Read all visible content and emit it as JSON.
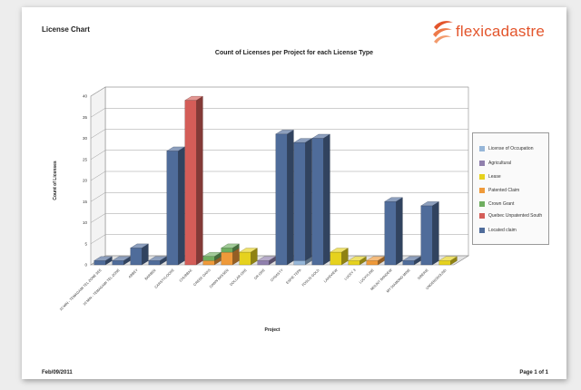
{
  "page": {
    "report_title": "License Chart",
    "logo_text": "flexicadastre",
    "date": "Feb/09/2011",
    "page_label": "Page 1 of 1"
  },
  "chart_data": {
    "type": "bar",
    "title": "Count of Licenses per Project for each License Type",
    "xlabel": "Project",
    "ylabel": "Count of Licenses",
    "ylim": [
      0,
      40
    ],
    "yticks": [
      0,
      5,
      10,
      15,
      20,
      25,
      30,
      35,
      40
    ],
    "grid": true,
    "legend_position": "right",
    "stacked": true,
    "categories": [
      "10 MIN - TEMAGAMI TEL ZONE 3EE",
      "10 MIN - TEMAGAMI TEL ZONE",
      "ABBEY",
      "BARBER",
      "CARSTYLOCRE",
      "CHUBBAK",
      "CREEK OAKS",
      "DAWN BASSEN",
      "DOLLAR ORE",
      "DR ORE",
      "DYNASTY",
      "ESPIE TEPA",
      "FOSLIS GOLD",
      "LAKEVIEW",
      "LUCKY 3",
      "LUCKYLINE",
      "MOUNT BANDEW",
      "MY DIAMOND MINE",
      "SIBERIE",
      "UNDERGROUND"
    ],
    "series": [
      {
        "name": "License of Occupation",
        "color": "#96b6d8",
        "values": [
          0,
          0,
          0,
          0,
          0,
          0,
          0,
          0,
          0,
          0,
          0,
          1,
          0,
          0,
          0,
          0,
          0,
          0,
          0,
          0
        ]
      },
      {
        "name": "Agricultural",
        "color": "#9080ad",
        "values": [
          0,
          0,
          0,
          0,
          0,
          0,
          0,
          0,
          0,
          1,
          0,
          0,
          0,
          0,
          0,
          0,
          0,
          0,
          0,
          0
        ]
      },
      {
        "name": "Lease",
        "color": "#e6d21e",
        "values": [
          0,
          0,
          0,
          0,
          0,
          0,
          0,
          0,
          3,
          0,
          0,
          0,
          0,
          3,
          1,
          0,
          0,
          0,
          0,
          1
        ]
      },
      {
        "name": "Patented Claim",
        "color": "#ef9a3a",
        "values": [
          0,
          0,
          0,
          0,
          0,
          0,
          1,
          3,
          0,
          0,
          0,
          0,
          0,
          0,
          0,
          1,
          0,
          0,
          0,
          0
        ]
      },
      {
        "name": "Crown Grant",
        "color": "#6fae60",
        "values": [
          0,
          0,
          0,
          0,
          0,
          0,
          1,
          1,
          0,
          0,
          0,
          0,
          0,
          0,
          0,
          0,
          0,
          0,
          0,
          0
        ]
      },
      {
        "name": "Quebec Unpatented South",
        "color": "#d45d58",
        "values": [
          0,
          0,
          0,
          0,
          0,
          39,
          0,
          0,
          0,
          0,
          0,
          0,
          0,
          0,
          0,
          0,
          0,
          0,
          0,
          0
        ]
      },
      {
        "name": "Located claim",
        "color": "#4f6c9a",
        "values": [
          1,
          1,
          4,
          1,
          27,
          0,
          0,
          0,
          0,
          0,
          31,
          28,
          30,
          0,
          0,
          0,
          15,
          1,
          14,
          0
        ]
      }
    ]
  }
}
